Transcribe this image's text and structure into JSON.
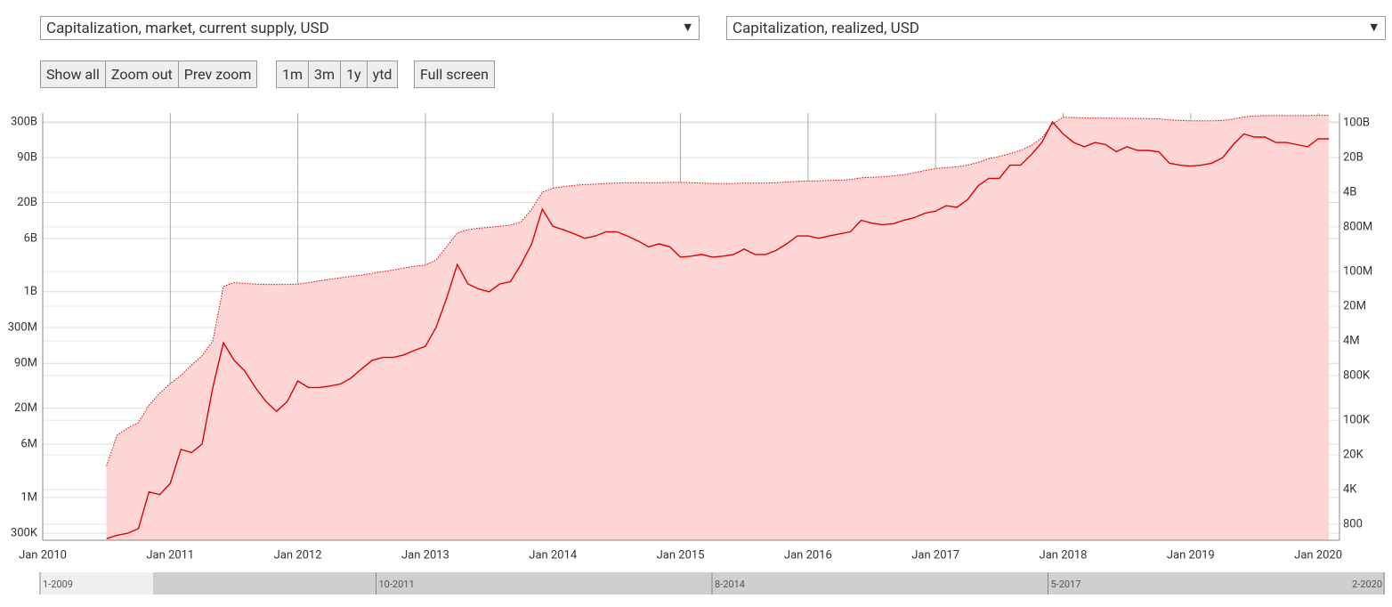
{
  "controls": {
    "zoom": [
      "Show all",
      "Zoom out",
      "Prev zoom"
    ],
    "ranges": [
      "1m",
      "3m",
      "1y",
      "ytd"
    ],
    "fullscreen": "Full screen"
  },
  "navigator": {
    "labels": [
      "1-2009",
      "10-2011",
      "8-2014",
      "5-2017",
      "2-2020"
    ]
  },
  "chart_data": {
    "type": "line",
    "x": [
      "2010-07",
      "2010-08",
      "2010-09",
      "2010-10",
      "2010-11",
      "2010-12",
      "2011-01",
      "2011-02",
      "2011-03",
      "2011-04",
      "2011-05",
      "2011-06",
      "2011-07",
      "2011-08",
      "2011-09",
      "2011-10",
      "2011-11",
      "2011-12",
      "2012-01",
      "2012-02",
      "2012-03",
      "2012-04",
      "2012-05",
      "2012-06",
      "2012-07",
      "2012-08",
      "2012-09",
      "2012-10",
      "2012-11",
      "2012-12",
      "2013-01",
      "2013-02",
      "2013-03",
      "2013-04",
      "2013-05",
      "2013-06",
      "2013-07",
      "2013-08",
      "2013-09",
      "2013-10",
      "2013-11",
      "2013-12",
      "2014-01",
      "2014-02",
      "2014-03",
      "2014-04",
      "2014-05",
      "2014-06",
      "2014-07",
      "2014-08",
      "2014-09",
      "2014-10",
      "2014-11",
      "2014-12",
      "2015-01",
      "2015-02",
      "2015-03",
      "2015-04",
      "2015-05",
      "2015-06",
      "2015-07",
      "2015-08",
      "2015-09",
      "2015-10",
      "2015-11",
      "2015-12",
      "2016-01",
      "2016-02",
      "2016-03",
      "2016-04",
      "2016-05",
      "2016-06",
      "2016-07",
      "2016-08",
      "2016-09",
      "2016-10",
      "2016-11",
      "2016-12",
      "2017-01",
      "2017-02",
      "2017-03",
      "2017-04",
      "2017-05",
      "2017-06",
      "2017-07",
      "2017-08",
      "2017-09",
      "2017-10",
      "2017-11",
      "2017-12",
      "2018-01",
      "2018-02",
      "2018-03",
      "2018-04",
      "2018-05",
      "2018-06",
      "2018-07",
      "2018-08",
      "2018-09",
      "2018-10",
      "2018-11",
      "2018-12",
      "2019-01",
      "2019-02",
      "2019-03",
      "2019-04",
      "2019-05",
      "2019-06",
      "2019-07",
      "2019-08",
      "2019-09",
      "2019-10",
      "2019-11",
      "2019-12",
      "2020-01",
      "2020-02"
    ],
    "series": [
      {
        "name": "Capitalization, market, current supply, USD",
        "type": "line",
        "color": "#e00000",
        "values": [
          250000,
          280000,
          300000,
          350000,
          1200000,
          1100000,
          1600000,
          5000000,
          4500000,
          6000000,
          40000000,
          180000000,
          100000000,
          70000000,
          40000000,
          25000000,
          18000000,
          25000000,
          50000000,
          40000000,
          40000000,
          42000000,
          45000000,
          55000000,
          75000000,
          100000000,
          110000000,
          110000000,
          120000000,
          140000000,
          160000000,
          300000000,
          800000000,
          2500000000,
          1300000000,
          1100000000,
          1000000000,
          1300000000,
          1400000000,
          2500000000,
          5000000000,
          16000000000,
          9000000000,
          8000000000,
          7000000000,
          6000000000,
          6500000000,
          7500000000,
          7500000000,
          6500000000,
          5500000000,
          4500000000,
          5000000000,
          4500000000,
          3200000000,
          3300000000,
          3500000000,
          3200000000,
          3300000000,
          3500000000,
          4200000000,
          3500000000,
          3500000000,
          4000000000,
          5000000000,
          6500000000,
          6500000000,
          6000000000,
          6500000000,
          7000000000,
          7500000000,
          11000000000,
          10000000000,
          9500000000,
          9800000000,
          11000000000,
          12000000000,
          14000000000,
          15000000000,
          18000000000,
          17000000000,
          22000000000,
          35000000000,
          45000000000,
          45000000000,
          70000000000,
          70000000000,
          100000000000,
          150000000000,
          300000000000,
          200000000000,
          150000000000,
          130000000000,
          150000000000,
          140000000000,
          110000000000,
          130000000000,
          115000000000,
          115000000000,
          110000000000,
          75000000000,
          70000000000,
          68000000000,
          70000000000,
          75000000000,
          90000000000,
          140000000000,
          200000000000,
          180000000000,
          180000000000,
          150000000000,
          150000000000,
          140000000000,
          130000000000,
          170000000000,
          170000000000
        ]
      },
      {
        "name": "Capitalization, realized, USD",
        "type": "area",
        "axis": "y2",
        "color": "#e00000",
        "fill": "#ffd6d6",
        "values": [
          12000,
          50000,
          70000,
          90000,
          200000,
          350000,
          550000,
          800000,
          1300000,
          2000000,
          4000000,
          50000000,
          60000000,
          58000000,
          56000000,
          55000000,
          55000000,
          55000000,
          56000000,
          60000000,
          65000000,
          70000000,
          75000000,
          80000000,
          85000000,
          92000000,
          100000000,
          108000000,
          118000000,
          128000000,
          135000000,
          170000000,
          320000000,
          600000000,
          700000000,
          750000000,
          780000000,
          820000000,
          870000000,
          1000000000,
          1800000000,
          4000000000,
          4800000000,
          5200000000,
          5500000000,
          5700000000,
          5800000000,
          6000000000,
          6100000000,
          6200000000,
          6200000000,
          6200000000,
          6200000000,
          6300000000,
          6300000000,
          6200000000,
          6100000000,
          6000000000,
          6000000000,
          6000000000,
          6100000000,
          6100000000,
          6100000000,
          6200000000,
          6400000000,
          6600000000,
          6700000000,
          6800000000,
          6900000000,
          7000000000,
          7200000000,
          7800000000,
          8000000000,
          8200000000,
          8500000000,
          9000000000,
          9800000000,
          11000000000,
          12000000000,
          12500000000,
          13000000000,
          14000000000,
          16000000000,
          19000000000,
          21000000000,
          24000000000,
          28000000000,
          35000000000,
          50000000000,
          95000000000,
          130000000000,
          128000000000,
          126000000000,
          125000000000,
          125000000000,
          124000000000,
          124000000000,
          123000000000,
          122000000000,
          121000000000,
          115000000000,
          112000000000,
          110000000000,
          110000000000,
          110000000000,
          112000000000,
          120000000000,
          132000000000,
          138000000000,
          140000000000,
          140000000000,
          140000000000,
          140000000000,
          140000000000,
          142000000000,
          142000000000
        ]
      }
    ],
    "xlim": [
      "2010-01",
      "2020-03"
    ],
    "xticks": [
      {
        "value": "2010-01",
        "label": "Jan 2010"
      },
      {
        "value": "2011-01",
        "label": "Jan 2011"
      },
      {
        "value": "2012-01",
        "label": "Jan 2012"
      },
      {
        "value": "2013-01",
        "label": "Jan 2013"
      },
      {
        "value": "2014-01",
        "label": "Jan 2014"
      },
      {
        "value": "2015-01",
        "label": "Jan 2015"
      },
      {
        "value": "2016-01",
        "label": "Jan 2016"
      },
      {
        "value": "2017-01",
        "label": "Jan 2017"
      },
      {
        "value": "2018-01",
        "label": "Jan 2018"
      },
      {
        "value": "2019-01",
        "label": "Jan 2019"
      },
      {
        "value": "2020-01",
        "label": "Jan 2020"
      }
    ],
    "ylog": true,
    "ylim": [
      237000,
      404000000000
    ],
    "yticks": [
      {
        "value": 300000,
        "label": "300K"
      },
      {
        "value": 1000000,
        "label": "1M"
      },
      {
        "value": 6000000,
        "label": "6M"
      },
      {
        "value": 20000000,
        "label": "20M"
      },
      {
        "value": 90000000,
        "label": "90M"
      },
      {
        "value": 300000000,
        "label": "300M"
      },
      {
        "value": 1000000000,
        "label": "1B"
      },
      {
        "value": 6000000000,
        "label": "6B"
      },
      {
        "value": 20000000000,
        "label": "20B"
      },
      {
        "value": 90000000000,
        "label": "90B"
      },
      {
        "value": 300000000000,
        "label": "300B"
      }
    ],
    "y2log": true,
    "y2lim": [
      380,
      158000000000
    ],
    "y2ticks": [
      {
        "value": 800,
        "label": "800"
      },
      {
        "value": 4000,
        "label": "4K"
      },
      {
        "value": 20000,
        "label": "20K"
      },
      {
        "value": 100000,
        "label": "100K"
      },
      {
        "value": 800000,
        "label": "800K"
      },
      {
        "value": 4000000,
        "label": "4M"
      },
      {
        "value": 20000000,
        "label": "20M"
      },
      {
        "value": 100000000,
        "label": "100M"
      },
      {
        "value": 800000000,
        "label": "800M"
      },
      {
        "value": 4000000000,
        "label": "4B"
      },
      {
        "value": 20000000000,
        "label": "20B"
      },
      {
        "value": 100000000000,
        "label": "100B"
      }
    ],
    "grid": true
  }
}
